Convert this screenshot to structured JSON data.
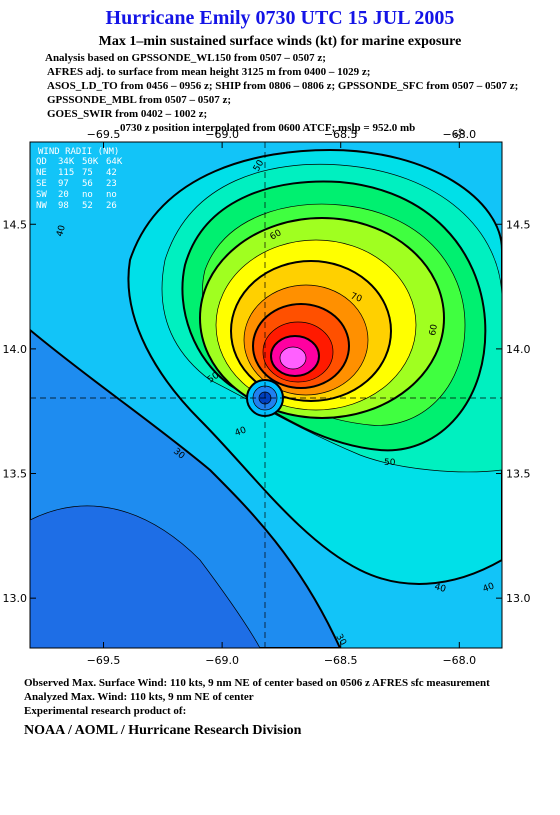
{
  "header": {
    "title": "Hurricane Emily 0730 UTC 15 JUL 2005",
    "subtitle": "Max 1–min sustained surface winds (kt) for marine exposure",
    "analysis": [
      "Analysis based on  GPSSONDE_WL150 from 0507 – 0507 z;",
      "AFRES adj. to surface from mean height 3125 m from 0400 – 1029 z;",
      "ASOS_LD_TO from 0456 – 0956 z;  SHIP from 0806 – 0806 z;  GPSSONDE_SFC from 0507 – 0507 z;",
      "GPSSONDE_MBL from 0507 – 0507 z;",
      "GOES_SWIR from 0402 – 1002 z;",
      "0730 z position interpolated from 0600 ATCF; mslp = 952.0 mb"
    ]
  },
  "map": {
    "xlim": [
      -69.81,
      -67.82
    ],
    "ylim": [
      12.8,
      14.83
    ],
    "xticks": [
      {
        "value": -69.5,
        "label": "−69.5"
      },
      {
        "value": -69.0,
        "label": "−69.0"
      },
      {
        "value": -68.5,
        "label": "−68.5"
      },
      {
        "value": -68.0,
        "label": "−68.0"
      }
    ],
    "yticks": [
      14.5,
      {
        "value": 14.0,
        "label": "14.0"
      },
      13.5,
      {
        "value": 13.0,
        "label": "13.0"
      }
    ],
    "wind_radii": {
      "title": "WIND RADII (NM)",
      "header": [
        "QD",
        "34K",
        "50K",
        "64K"
      ],
      "rows": [
        [
          "NE",
          115,
          75,
          42
        ],
        [
          "SE",
          97,
          56,
          23
        ],
        [
          "SW",
          20,
          "no",
          "no"
        ],
        [
          "NW",
          98,
          52,
          26
        ]
      ]
    },
    "contour_labels": [
      "50",
      "40",
      "60",
      "70",
      "60",
      "50",
      "40",
      "30",
      "50",
      "40",
      "40",
      "30",
      "50"
    ]
  },
  "footer": {
    "observed": "Observed Max. Surface Wind: 110 kts, 9 nm NE of center based on 0506 z AFRES sfc measurement",
    "analyzed": "Analyzed Max. Wind: 110 kts, 9 nm NE of center",
    "product": "Experimental research product of:",
    "organization": "NOAA / AOML / Hurricane Research Division"
  }
}
